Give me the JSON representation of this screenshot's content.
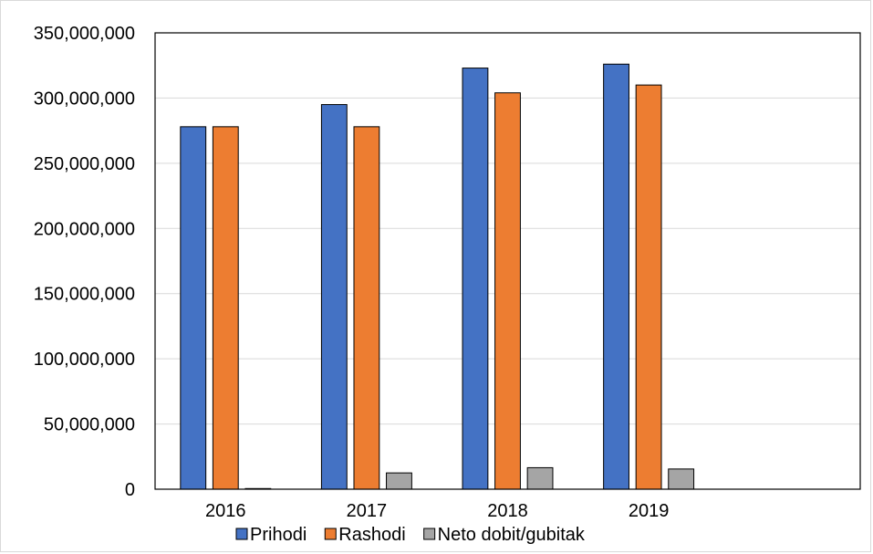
{
  "chart_data": {
    "type": "bar",
    "title": "",
    "xlabel": "",
    "ylabel": "",
    "categories": [
      "2016",
      "2017",
      "2018",
      "2019",
      ""
    ],
    "series": [
      {
        "name": "Prihodi",
        "color": "#4472C4",
        "values": [
          278000000,
          295000000,
          323000000,
          326000000,
          null
        ]
      },
      {
        "name": "Rashodi",
        "color": "#ED7D31",
        "values": [
          278000000,
          278000000,
          304000000,
          310000000,
          null
        ]
      },
      {
        "name": "Neto dobit/gubitak",
        "color": "#A5A5A5",
        "values": [
          500000,
          12500000,
          16500000,
          15500000,
          null
        ]
      }
    ],
    "ylim": [
      0,
      350000000
    ],
    "yticks": [
      "0",
      "50,000,000",
      "100,000,000",
      "150,000,000",
      "200,000,000",
      "250,000,000",
      "300,000,000",
      "350,000,000"
    ],
    "grid": true,
    "legend_position": "bottom"
  }
}
